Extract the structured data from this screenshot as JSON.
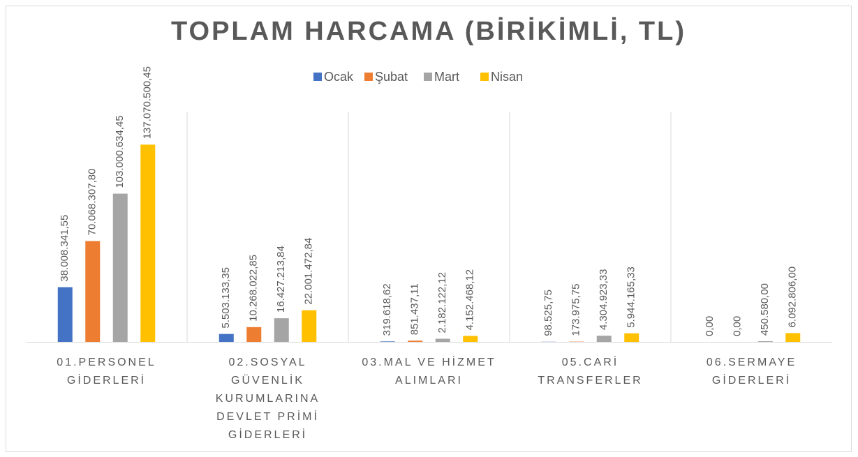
{
  "chart_data": {
    "type": "bar",
    "title": "TOPLAM HARCAMA (BİRİKİMLİ, TL)",
    "categories": [
      "01.PERSONEL\nGİDERLERİ",
      "02.SOSYAL\nGÜVENLİK\nKURUMLARINA\nDEVLET PRİMİ\nGİDERLERİ",
      "03.MAL VE HİZMET\nALIMLARI",
      "05.CARİ\nTRANSFERLER",
      "06.SERMAYE\nGİDERLERİ"
    ],
    "series": [
      {
        "name": "Ocak",
        "color": "#4472c4",
        "values": [
          38008341.55,
          5503133.35,
          319618.62,
          98525.75,
          0
        ],
        "value_labels": [
          "38.008.341,55",
          "5.503.133,35",
          "319.618,62",
          "98.525,75",
          "0,00"
        ]
      },
      {
        "name": "Şubat",
        "color": "#ed7d31",
        "values": [
          70068307.8,
          10268022.85,
          851437.11,
          173975.75,
          0
        ],
        "value_labels": [
          "70.068.307,80",
          "10.268.022,85",
          "851.437,11",
          "173.975,75",
          "0,00"
        ]
      },
      {
        "name": "Mart",
        "color": "#a5a5a5",
        "values": [
          103000634.45,
          16427213.84,
          2182122.12,
          4304923.33,
          450580.0
        ],
        "value_labels": [
          "103.000.634,45",
          "16.427.213,84",
          "2.182.122,12",
          "4.304.923,33",
          "450.580,00"
        ]
      },
      {
        "name": "Nisan",
        "color": "#ffc000",
        "values": [
          137070500.45,
          22001472.84,
          4152468.12,
          5944165.33,
          6092806.0
        ],
        "value_labels": [
          "137.070.500,45",
          "22.001.472,84",
          "4.152.468,12",
          "5.944.165,33",
          "6.092.806,00"
        ]
      }
    ],
    "ylim": [
      0,
      160000000
    ]
  }
}
